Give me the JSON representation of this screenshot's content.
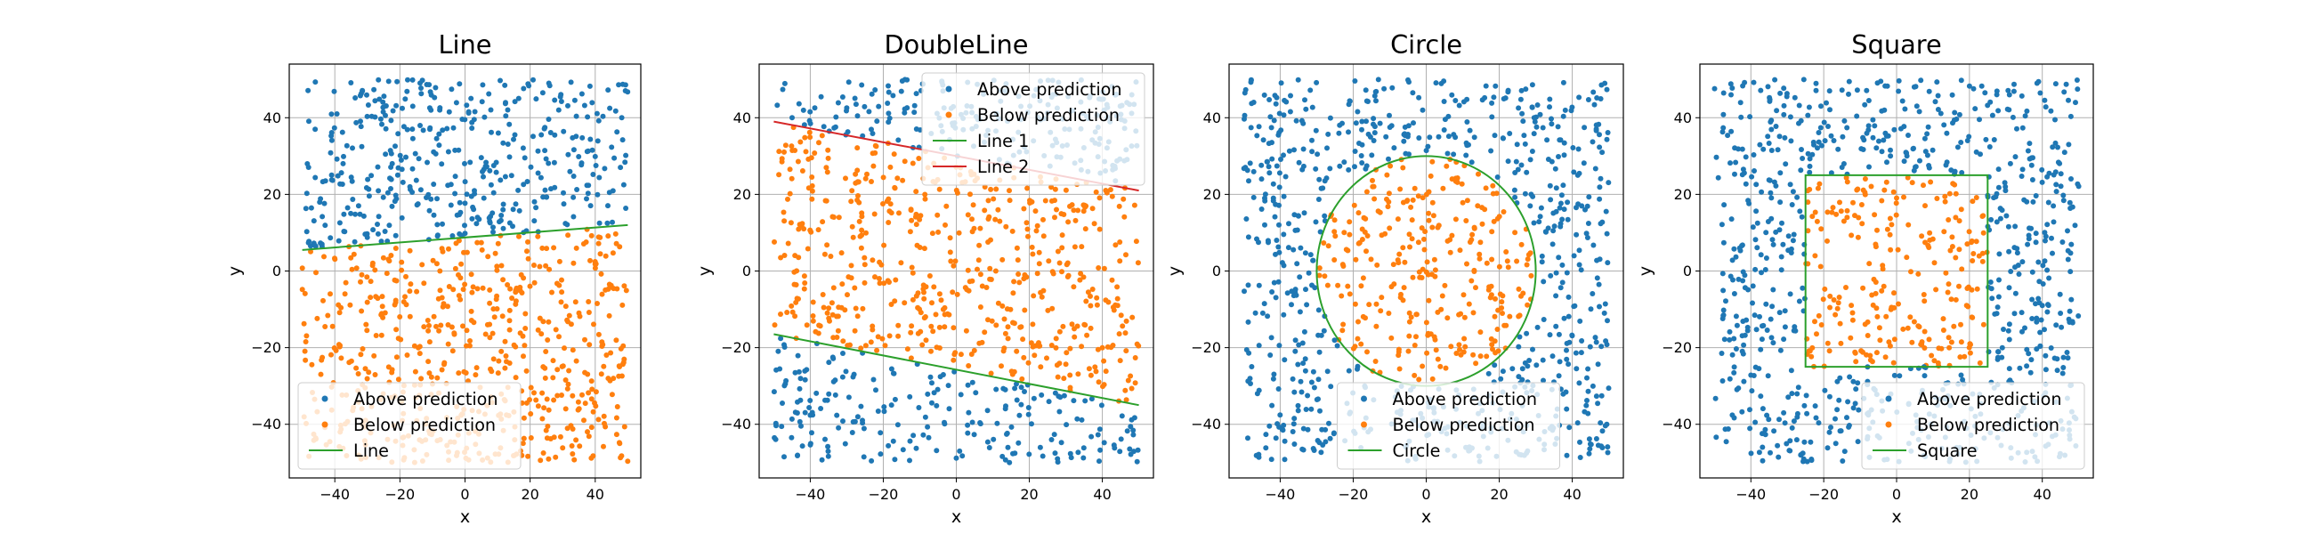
{
  "figure": {
    "background": "#ffffff"
  },
  "colors": {
    "above": "#1f77b4",
    "below": "#ff7f0e",
    "line1": "#2ca02c",
    "line2": "#d62728",
    "grid": "#b0b0b0",
    "axis": "#000000"
  },
  "chart_data": [
    {
      "type": "scatter",
      "title": "Line",
      "xlabel": "x",
      "ylabel": "y",
      "xlim": [
        -54,
        54
      ],
      "ylim": [
        -54,
        54
      ],
      "xticks": [
        -40,
        -20,
        0,
        20,
        40
      ],
      "yticks": [
        -40,
        -20,
        0,
        20,
        40
      ],
      "tick_labels": [
        "−40",
        "−20",
        "0",
        "20",
        "40"
      ],
      "grid": true,
      "points_per_class": "approx. 500",
      "series": [
        {
          "name": "Above prediction",
          "kind": "points",
          "color": "#1f77b4",
          "region": "above the line"
        },
        {
          "name": "Below prediction",
          "kind": "points",
          "color": "#ff7f0e",
          "region": "below the line"
        },
        {
          "name": "Line",
          "kind": "line",
          "color": "#2ca02c",
          "x": [
            -50,
            50
          ],
          "y": [
            5.5,
            12
          ]
        }
      ],
      "legend": {
        "position": "lower-left",
        "entries": [
          "Above prediction",
          "Below prediction",
          "Line"
        ]
      }
    },
    {
      "type": "scatter",
      "title": "DoubleLine",
      "xlabel": "x",
      "ylabel": "y",
      "xlim": [
        -54,
        54
      ],
      "ylim": [
        -54,
        54
      ],
      "xticks": [
        -40,
        -20,
        0,
        20,
        40
      ],
      "yticks": [
        -40,
        -20,
        0,
        20,
        40
      ],
      "tick_labels": [
        "−40",
        "−20",
        "0",
        "20",
        "40"
      ],
      "grid": true,
      "series": [
        {
          "name": "Above prediction",
          "kind": "points",
          "color": "#1f77b4",
          "region": "outside the band"
        },
        {
          "name": "Below prediction",
          "kind": "points",
          "color": "#ff7f0e",
          "region": "between the two lines"
        },
        {
          "name": "Line 1",
          "kind": "line",
          "color": "#2ca02c",
          "x": [
            -50,
            50
          ],
          "y": [
            -16.5,
            -35
          ]
        },
        {
          "name": "Line 2",
          "kind": "line",
          "color": "#d62728",
          "x": [
            -50,
            50
          ],
          "y": [
            39,
            21
          ]
        }
      ],
      "legend": {
        "position": "upper-right",
        "entries": [
          "Above prediction",
          "Below prediction",
          "Line 1",
          "Line 2"
        ]
      }
    },
    {
      "type": "scatter",
      "title": "Circle",
      "xlabel": "x",
      "ylabel": "y",
      "xlim": [
        -54,
        54
      ],
      "ylim": [
        -54,
        54
      ],
      "xticks": [
        -40,
        -20,
        0,
        20,
        40
      ],
      "yticks": [
        -40,
        -20,
        0,
        20,
        40
      ],
      "tick_labels": [
        "−40",
        "−20",
        "0",
        "20",
        "40"
      ],
      "grid": true,
      "series": [
        {
          "name": "Above prediction",
          "kind": "points",
          "color": "#1f77b4",
          "region": "outside the circle"
        },
        {
          "name": "Below prediction",
          "kind": "points",
          "color": "#ff7f0e",
          "region": "inside the circle"
        },
        {
          "name": "Circle",
          "kind": "circle",
          "color": "#2ca02c",
          "center": [
            0,
            0
          ],
          "radius": 30
        }
      ],
      "legend": {
        "position": "lower-center",
        "entries": [
          "Above prediction",
          "Below prediction",
          "Circle"
        ]
      }
    },
    {
      "type": "scatter",
      "title": "Square",
      "xlabel": "x",
      "ylabel": "y",
      "xlim": [
        -54,
        54
      ],
      "ylim": [
        -54,
        54
      ],
      "xticks": [
        -40,
        -20,
        0,
        20,
        40
      ],
      "yticks": [
        -40,
        -20,
        0,
        20,
        40
      ],
      "tick_labels": [
        "−40",
        "−20",
        "0",
        "20",
        "40"
      ],
      "grid": true,
      "series": [
        {
          "name": "Above prediction",
          "kind": "points",
          "color": "#1f77b4",
          "region": "outside the square"
        },
        {
          "name": "Below prediction",
          "kind": "points",
          "color": "#ff7f0e",
          "region": "inside the square"
        },
        {
          "name": "Square",
          "kind": "square",
          "color": "#2ca02c",
          "x": [
            -25,
            25
          ],
          "y": [
            -25,
            25
          ]
        }
      ],
      "legend": {
        "position": "lower-right",
        "entries": [
          "Above prediction",
          "Below prediction",
          "Square"
        ]
      }
    }
  ]
}
